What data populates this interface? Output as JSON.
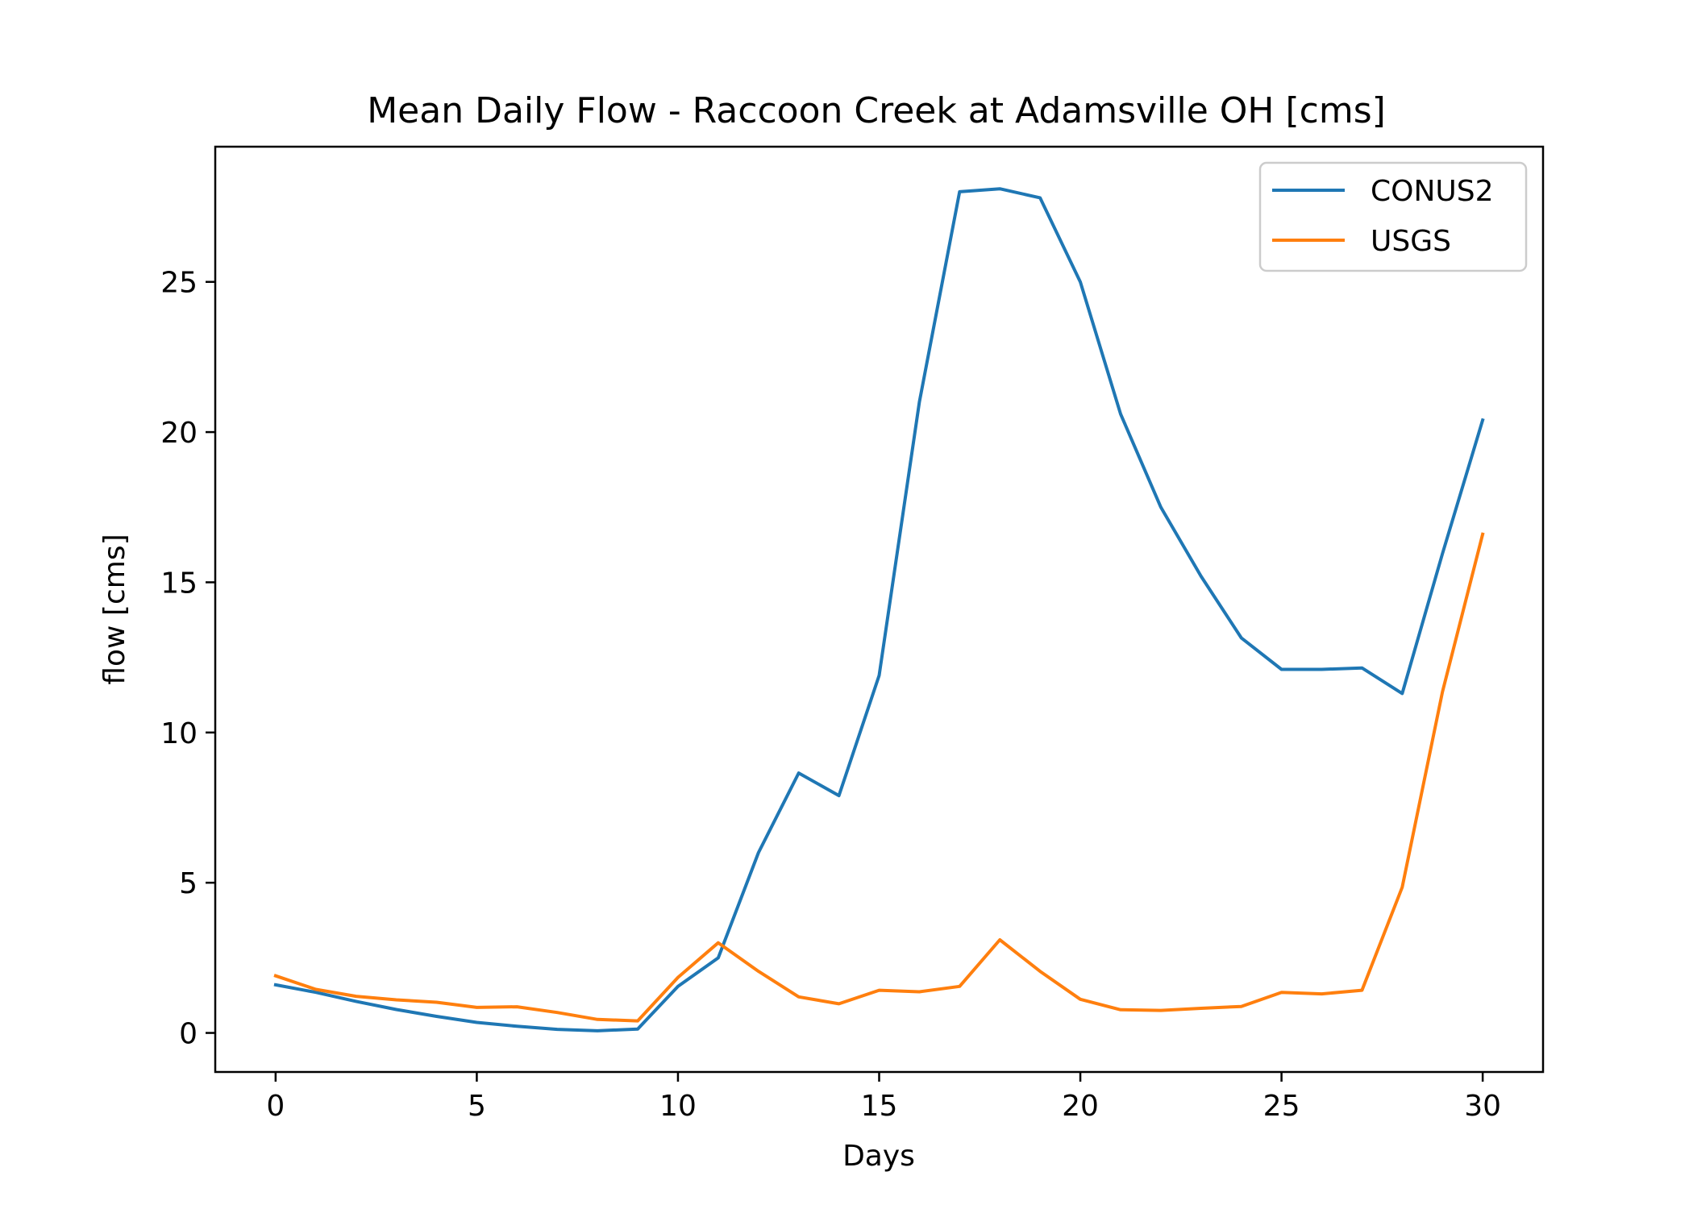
{
  "chart_data": {
    "type": "line",
    "title": "Mean Daily Flow - Raccoon Creek at Adamsville OH [cms]",
    "xlabel": "Days",
    "ylabel": "flow [cms]",
    "xlim": [
      -1.5,
      31.5
    ],
    "ylim": [
      -1.3,
      29.5
    ],
    "xticks": [
      0,
      5,
      10,
      15,
      20,
      25,
      30
    ],
    "xtick_labels": [
      "0",
      "5",
      "10",
      "15",
      "20",
      "25",
      "30"
    ],
    "yticks": [
      0,
      5,
      10,
      15,
      20,
      25
    ],
    "ytick_labels": [
      "0",
      "5",
      "10",
      "15",
      "20",
      "25"
    ],
    "grid": false,
    "legend": "top-right",
    "x": [
      0,
      1,
      2,
      3,
      4,
      5,
      6,
      7,
      8,
      9,
      10,
      11,
      12,
      13,
      14,
      15,
      16,
      17,
      18,
      19,
      20,
      21,
      22,
      23,
      24,
      25,
      26,
      27,
      28,
      29,
      30
    ],
    "series": [
      {
        "name": "CONUS2",
        "color": "#1f77b4",
        "values": [
          1.6,
          1.35,
          1.05,
          0.78,
          0.55,
          0.35,
          0.22,
          0.12,
          0.07,
          0.13,
          1.55,
          2.5,
          6.0,
          8.65,
          7.9,
          11.9,
          21.0,
          28.0,
          28.1,
          27.8,
          25.0,
          20.6,
          17.5,
          15.2,
          13.15,
          12.1,
          12.1,
          12.15,
          11.3,
          15.95,
          20.4
        ]
      },
      {
        "name": "USGS",
        "color": "#ff7f0e",
        "values": [
          1.9,
          1.45,
          1.22,
          1.1,
          1.02,
          0.85,
          0.87,
          0.68,
          0.45,
          0.4,
          1.85,
          3.0,
          2.05,
          1.2,
          0.97,
          1.42,
          1.37,
          1.55,
          3.1,
          2.05,
          1.12,
          0.77,
          0.75,
          0.82,
          0.88,
          1.35,
          1.3,
          1.42,
          4.85,
          11.35,
          16.6
        ]
      }
    ]
  }
}
